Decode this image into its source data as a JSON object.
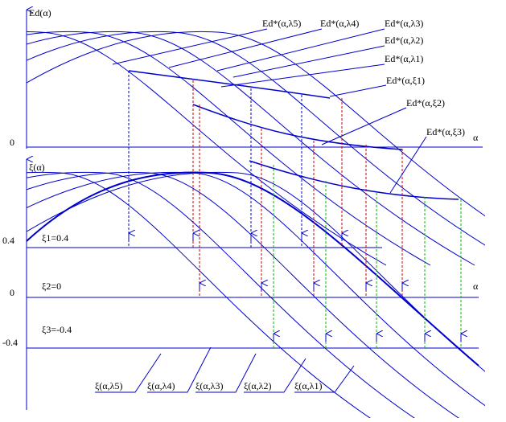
{
  "upper": {
    "axis_label": "Ed(α)",
    "x_label": "α",
    "zero": "0",
    "curves": [
      "Ed*(α,λ5)",
      "Ed*(α,λ4)",
      "Ed*(α,λ3)",
      "Ed*(α,λ2)",
      "Ed*(α,λ1)",
      "Ed*(α,ξ1)",
      "Ed*(α,ξ2)",
      "Ed*(α,ξ3)"
    ]
  },
  "lower": {
    "axis_label": "ξ(α)",
    "x_label": "α",
    "tick_top": "0.4",
    "tick_zero": "0",
    "tick_bottom": "-0.4",
    "levels": [
      "ξ1=0.4",
      "ξ2=0",
      "ξ3=-0.4"
    ],
    "curves": [
      "ξ(α,λ5)",
      "ξ(α,λ4)",
      "ξ(α,λ3)",
      "ξ(α,λ2)",
      "ξ(α,λ1)"
    ]
  }
}
